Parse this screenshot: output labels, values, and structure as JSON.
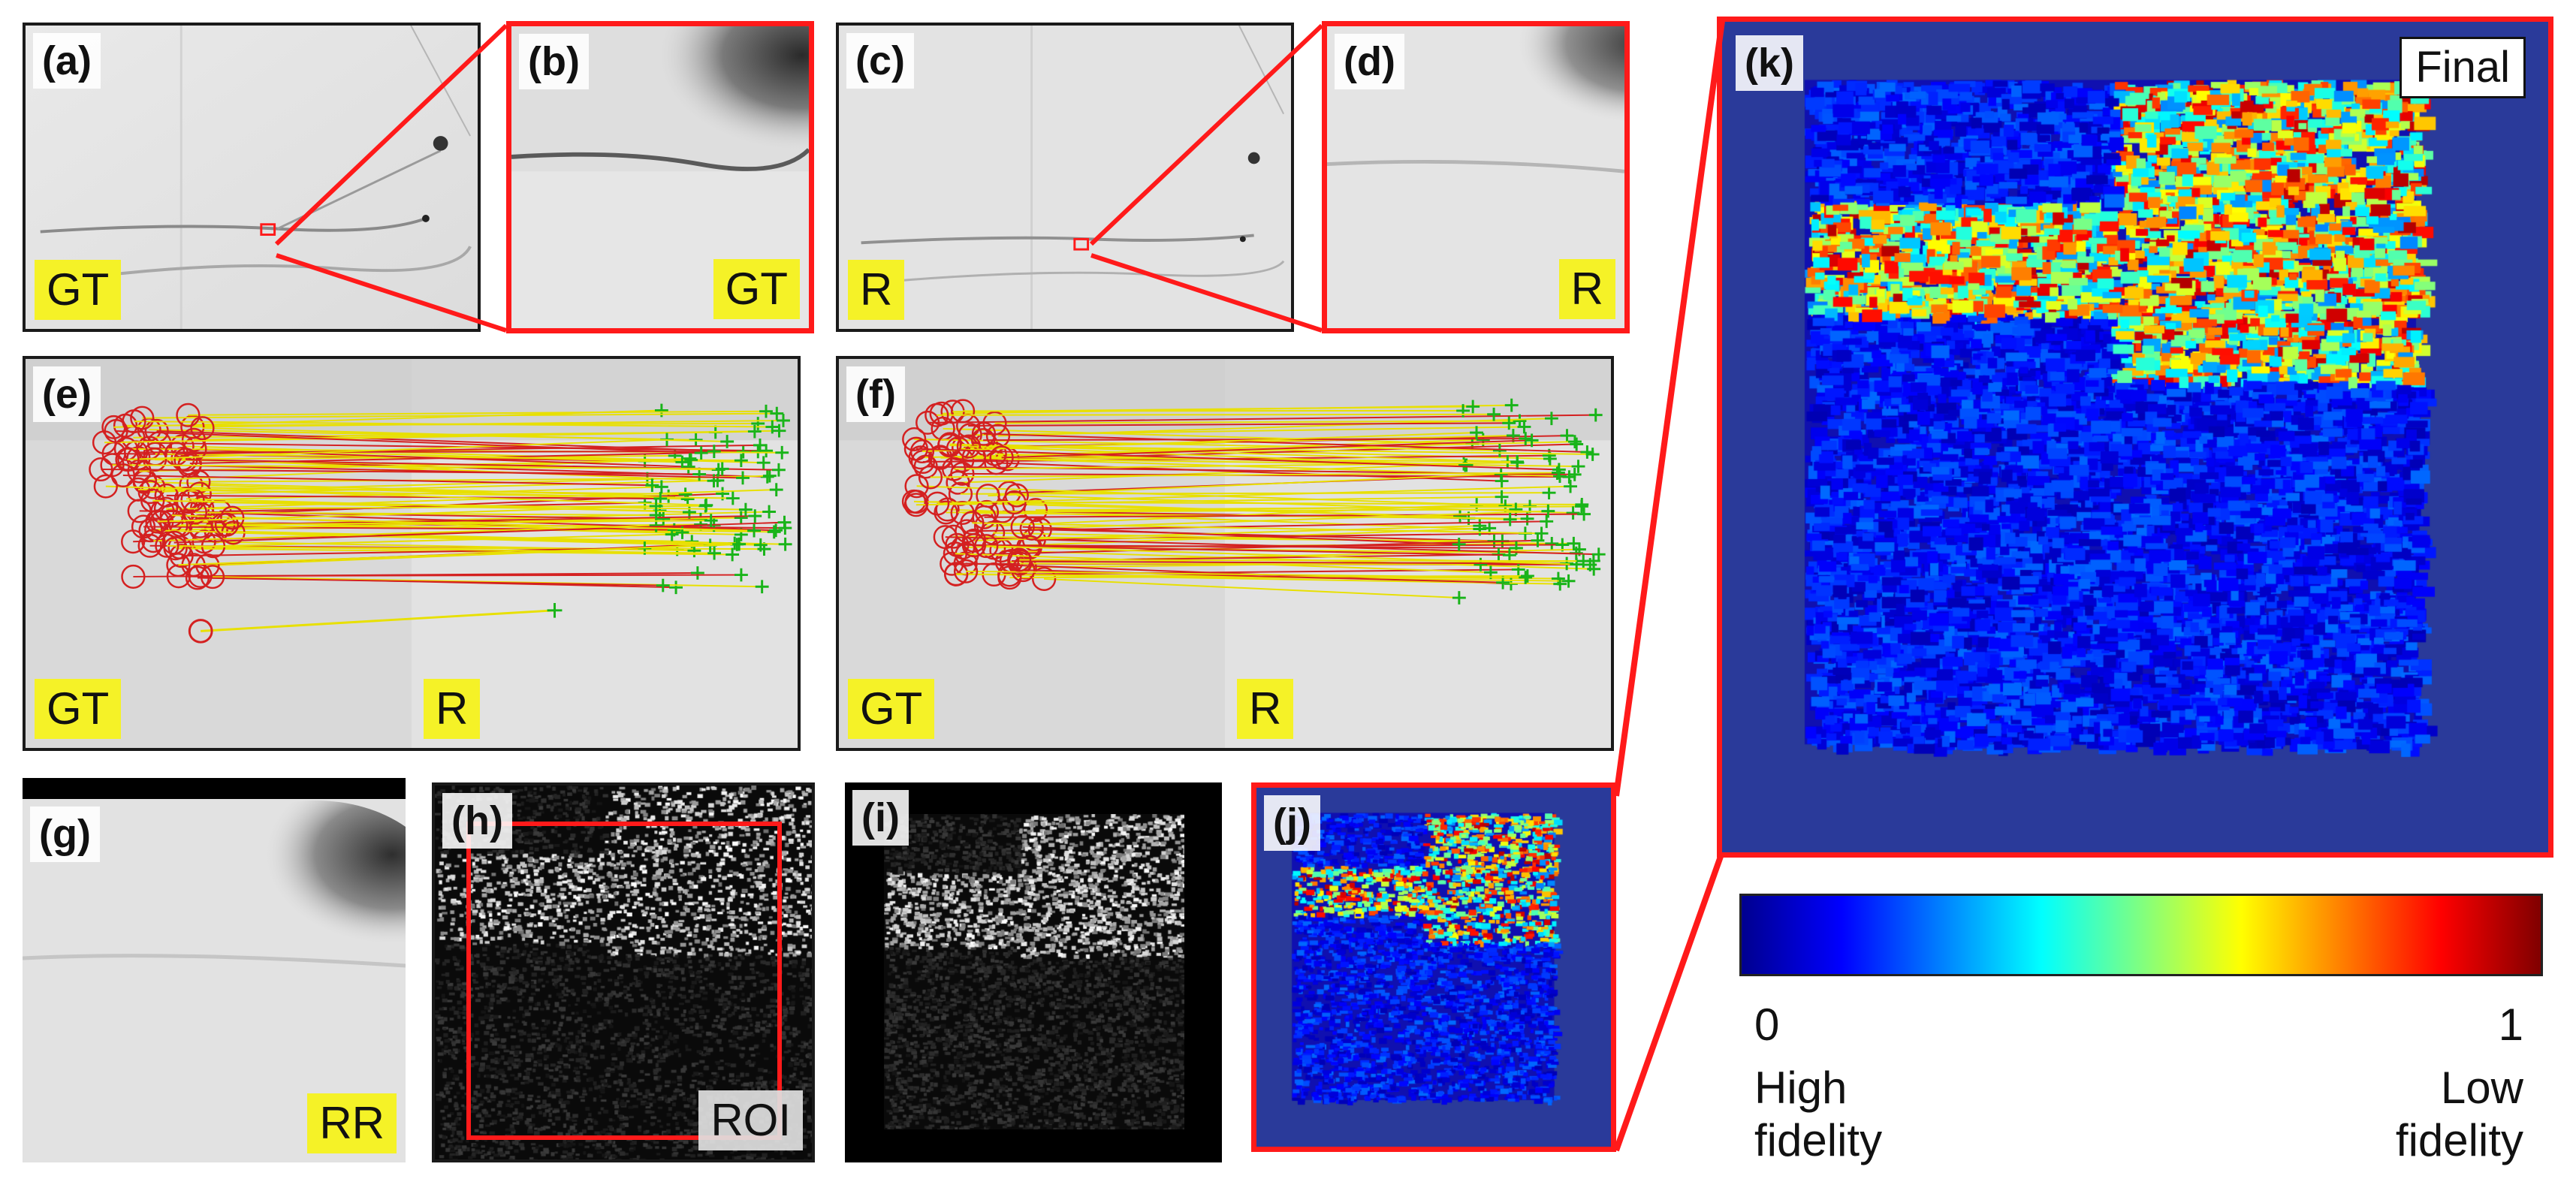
{
  "panels": {
    "a": {
      "label": "(a)",
      "tag": "GT"
    },
    "b": {
      "label": "(b)",
      "tag": "GT"
    },
    "c": {
      "label": "(c)",
      "tag": "R"
    },
    "d": {
      "label": "(d)",
      "tag": "R"
    },
    "e": {
      "label": "(e)",
      "tag_left": "GT",
      "tag_right": "R"
    },
    "f": {
      "label": "(f)",
      "tag_left": "GT",
      "tag_right": "R"
    },
    "g": {
      "label": "(g)",
      "tag": "RR"
    },
    "h": {
      "label": "(h)",
      "tag": "ROI"
    },
    "i": {
      "label": "(i)"
    },
    "j": {
      "label": "(j)"
    },
    "k": {
      "label": "(k)",
      "badge": "Final"
    }
  },
  "colorbar": {
    "min_label": "0",
    "max_label": "1",
    "low_end_text": [
      "High",
      "fidelity"
    ],
    "high_end_text": [
      "Low",
      "fidelity"
    ],
    "colors": [
      "#00008f",
      "#0000ff",
      "#0080ff",
      "#00ffff",
      "#80ff80",
      "#ffff00",
      "#ff8000",
      "#ff0000",
      "#800000"
    ]
  },
  "colors": {
    "highlight": "#ff1a1a",
    "tag_bg": "#f5f227",
    "heatmap_bg": "#2a3a9a",
    "match_line": "#e8e000",
    "keypoint_gt": "#d42020",
    "keypoint_r": "#19b419"
  }
}
